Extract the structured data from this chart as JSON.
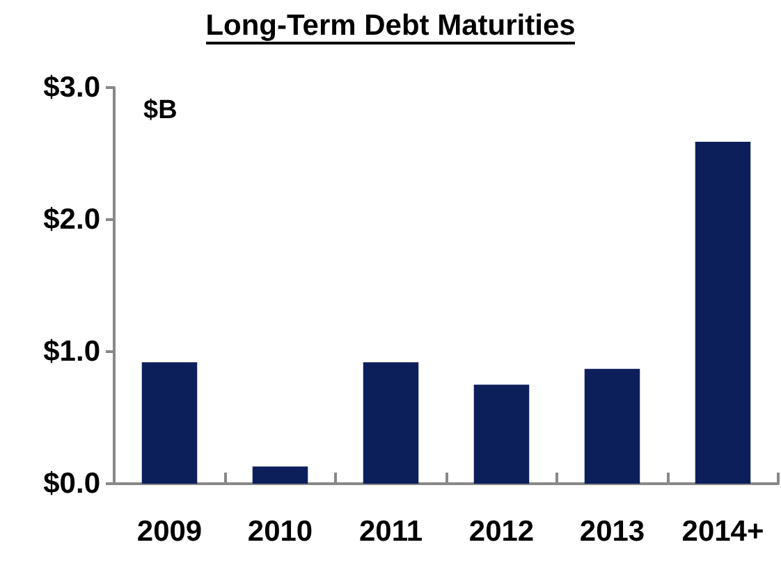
{
  "chart_data": {
    "type": "bar",
    "title": "Long-Term Debt Maturities",
    "annotations": [
      "$B"
    ],
    "categories": [
      "2009",
      "2010",
      "2011",
      "2012",
      "2013",
      "2014+"
    ],
    "values": [
      0.92,
      0.13,
      0.92,
      0.75,
      0.87,
      2.59
    ],
    "color": "#0d1f5b",
    "ylim": [
      0,
      3
    ],
    "yticks": [
      {
        "value": 0,
        "label": "$0.0"
      },
      {
        "value": 1,
        "label": "$1.0"
      },
      {
        "value": 2,
        "label": "$2.0"
      },
      {
        "value": 3,
        "label": "$3.0"
      }
    ],
    "grid": false
  }
}
